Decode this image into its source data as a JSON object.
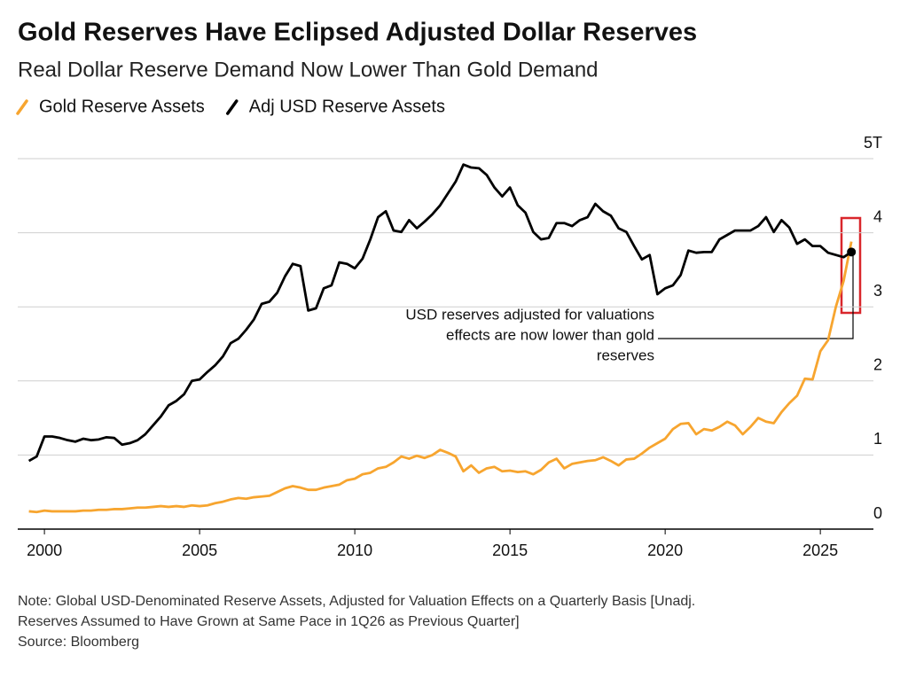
{
  "chart_data": {
    "type": "line",
    "title": "Gold Reserves Have Eclipsed Adjusted Dollar Reserves",
    "subtitle": "Real Dollar Reserve Demand Now Lower Than Gold Demand",
    "annotation": [
      "USD reserves adjusted for valuations",
      "effects are now lower than gold",
      "reserves"
    ],
    "notes": [
      "Note: Global USD-Denominated Reserve Assets, Adjusted for Valuation Effects on a Quarterly Basis [Unadj.",
      "Reserves Assumed to Have Grown at Same Pace in 1Q26 as Previous Quarter]",
      "Source: Bloomberg"
    ],
    "x": [
      1999.5,
      1999.75,
      2000,
      2000.25,
      2000.5,
      2000.75,
      2001,
      2001.25,
      2001.5,
      2001.75,
      2002,
      2002.25,
      2002.5,
      2002.75,
      2003,
      2003.25,
      2003.5,
      2003.75,
      2004,
      2004.25,
      2004.5,
      2004.75,
      2005,
      2005.25,
      2005.5,
      2005.75,
      2006,
      2006.25,
      2006.5,
      2006.75,
      2007,
      2007.25,
      2007.5,
      2007.75,
      2008,
      2008.25,
      2008.5,
      2008.75,
      2009,
      2009.25,
      2009.5,
      2009.75,
      2010,
      2010.25,
      2010.5,
      2010.75,
      2011,
      2011.25,
      2011.5,
      2011.75,
      2012,
      2012.25,
      2012.5,
      2012.75,
      2013,
      2013.25,
      2013.5,
      2013.75,
      2014,
      2014.25,
      2014.5,
      2014.75,
      2015,
      2015.25,
      2015.5,
      2015.75,
      2016,
      2016.25,
      2016.5,
      2016.75,
      2017,
      2017.25,
      2017.5,
      2017.75,
      2018,
      2018.25,
      2018.5,
      2018.75,
      2019,
      2019.25,
      2019.5,
      2019.75,
      2020,
      2020.25,
      2020.5,
      2020.75,
      2021,
      2021.25,
      2021.5,
      2021.75,
      2022,
      2022.25,
      2022.5,
      2022.75,
      2023,
      2023.25,
      2023.5,
      2023.75,
      2024,
      2024.25,
      2024.5,
      2024.75,
      2025,
      2025.25,
      2025.5,
      2025.75,
      2026
    ],
    "series": [
      {
        "name": "Gold Reserve Assets",
        "color": "#f7a52f",
        "values": [
          0.24,
          0.23,
          0.25,
          0.24,
          0.24,
          0.24,
          0.24,
          0.25,
          0.25,
          0.26,
          0.26,
          0.27,
          0.27,
          0.28,
          0.29,
          0.29,
          0.3,
          0.31,
          0.3,
          0.31,
          0.3,
          0.32,
          0.31,
          0.32,
          0.35,
          0.37,
          0.4,
          0.42,
          0.41,
          0.43,
          0.44,
          0.45,
          0.5,
          0.55,
          0.58,
          0.56,
          0.53,
          0.53,
          0.56,
          0.58,
          0.6,
          0.66,
          0.68,
          0.74,
          0.76,
          0.82,
          0.84,
          0.9,
          0.98,
          0.95,
          0.99,
          0.96,
          1.0,
          1.07,
          1.03,
          0.98,
          0.78,
          0.86,
          0.76,
          0.82,
          0.84,
          0.78,
          0.79,
          0.77,
          0.78,
          0.74,
          0.8,
          0.9,
          0.95,
          0.82,
          0.88,
          0.9,
          0.92,
          0.93,
          0.97,
          0.92,
          0.86,
          0.94,
          0.95,
          1.02,
          1.1,
          1.16,
          1.22,
          1.35,
          1.42,
          1.43,
          1.28,
          1.35,
          1.33,
          1.38,
          1.45,
          1.4,
          1.28,
          1.38,
          1.5,
          1.45,
          1.43,
          1.58,
          1.7,
          1.8,
          2.03,
          2.02,
          2.4,
          2.55,
          3.0,
          3.35,
          3.88
        ]
      },
      {
        "name": "Adj USD Reserve Assets",
        "color": "#000000",
        "values": [
          0.92,
          0.98,
          1.25,
          1.25,
          1.23,
          1.2,
          1.18,
          1.22,
          1.2,
          1.21,
          1.24,
          1.23,
          1.14,
          1.16,
          1.2,
          1.28,
          1.4,
          1.52,
          1.67,
          1.73,
          1.82,
          2.0,
          2.02,
          2.12,
          2.21,
          2.33,
          2.51,
          2.57,
          2.69,
          2.83,
          3.04,
          3.07,
          3.19,
          3.41,
          3.58,
          3.55,
          2.95,
          2.98,
          3.25,
          3.29,
          3.6,
          3.58,
          3.52,
          3.65,
          3.91,
          4.21,
          4.29,
          4.03,
          4.01,
          4.17,
          4.06,
          4.15,
          4.25,
          4.37,
          4.53,
          4.69,
          4.92,
          4.88,
          4.87,
          4.78,
          4.61,
          4.49,
          4.61,
          4.37,
          4.27,
          4.01,
          3.91,
          3.93,
          4.13,
          4.13,
          4.09,
          4.17,
          4.21,
          4.39,
          4.29,
          4.23,
          4.06,
          4.01,
          3.82,
          3.64,
          3.7,
          3.17,
          3.25,
          3.29,
          3.43,
          3.76,
          3.73,
          3.74,
          3.74,
          3.91,
          3.97,
          4.03,
          4.03,
          4.03,
          4.09,
          4.21,
          4.01,
          4.17,
          4.07,
          3.85,
          3.91,
          3.82,
          3.82,
          3.73,
          3.7,
          3.67,
          3.74
        ]
      }
    ],
    "xlim": [
      1999.14,
      2026.71
    ],
    "xticks": [
      2000,
      2005,
      2010,
      2015,
      2020,
      2025
    ],
    "ylim": [
      0,
      5
    ],
    "yticks": [
      0,
      1,
      2,
      3,
      4,
      {
        "value": 5,
        "label": "5T"
      }
    ],
    "grid": true
  }
}
